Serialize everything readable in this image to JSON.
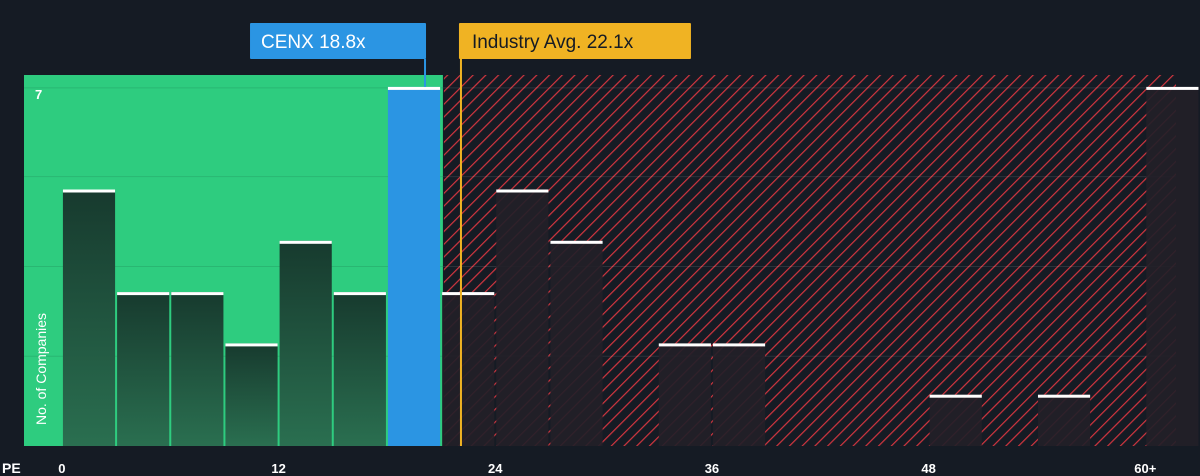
{
  "chart_data": {
    "type": "bar",
    "xlabel": "PE",
    "ylabel": "No. of Companies",
    "x_ticks": [
      {
        "value": 0,
        "label": "0"
      },
      {
        "value": 12,
        "label": "12"
      },
      {
        "value": 24,
        "label": "24"
      },
      {
        "value": 36,
        "label": "36"
      },
      {
        "value": 48,
        "label": "48"
      },
      {
        "value": 60,
        "label": "60+"
      }
    ],
    "y_ticks": [
      {
        "value": 7,
        "label": "7"
      }
    ],
    "xlim": [
      -2.1,
      61.7
    ],
    "ylim": [
      0,
      7.05
    ],
    "bin_width": 3,
    "bins": [
      {
        "start": 0,
        "count": 5
      },
      {
        "start": 3,
        "count": 3
      },
      {
        "start": 6,
        "count": 3
      },
      {
        "start": 9,
        "count": 2
      },
      {
        "start": 12,
        "count": 4
      },
      {
        "start": 15,
        "count": 3
      },
      {
        "start": 18,
        "count": 7
      },
      {
        "start": 21,
        "count": 3
      },
      {
        "start": 24,
        "count": 5
      },
      {
        "start": 27,
        "count": 4
      },
      {
        "start": 30,
        "count": 0
      },
      {
        "start": 33,
        "count": 2
      },
      {
        "start": 36,
        "count": 2
      },
      {
        "start": 39,
        "count": 0
      },
      {
        "start": 42,
        "count": 0
      },
      {
        "start": 45,
        "count": 0
      },
      {
        "start": 48,
        "count": 1
      },
      {
        "start": 51,
        "count": 0
      },
      {
        "start": 54,
        "count": 1
      },
      {
        "start": 57,
        "count": 0
      },
      {
        "start": 60,
        "count": 7
      }
    ],
    "highlight": {
      "label": "CENX 18.8x",
      "value": 18.8,
      "bin_start": 18
    },
    "industry_avg": {
      "label": "Industry Avg. 22.1x",
      "value": 22.1
    },
    "fair_zone_end": 21.1,
    "colors": {
      "background": "#151b24",
      "fair_zone": "#2ecc7f",
      "bar_in_zone": "#1f4a3a",
      "bar_outside": "#231f28",
      "highlight": "#2b95e3",
      "industry": "#f0b323",
      "hatch": "#d2353f",
      "cap": "#ffffff",
      "text": "#ffffff"
    }
  }
}
